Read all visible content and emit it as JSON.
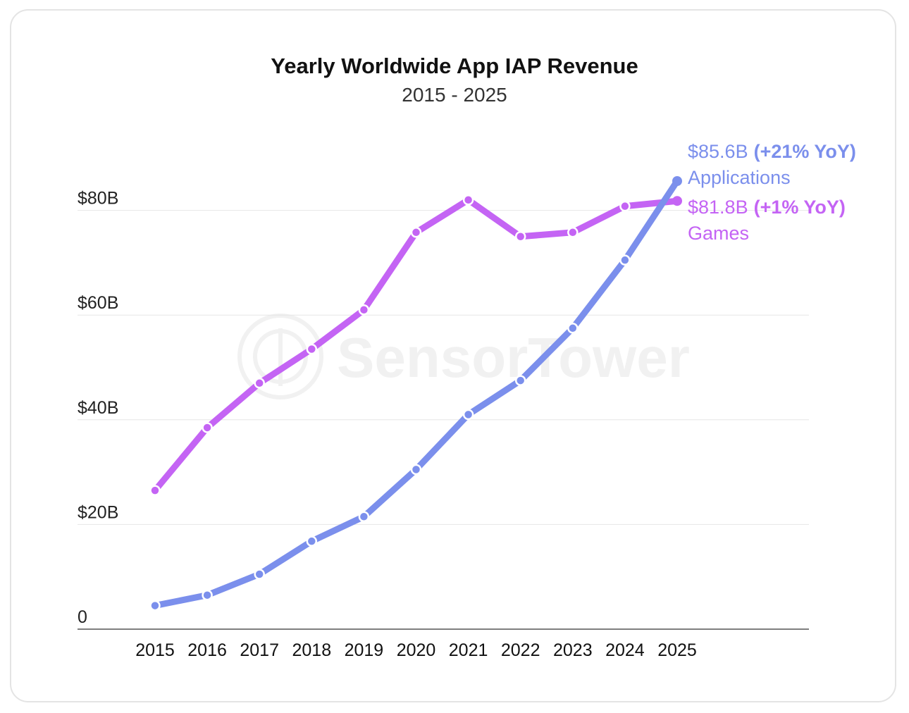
{
  "chart_data": {
    "type": "line",
    "title": "Yearly Worldwide App IAP Revenue",
    "subtitle": "2015 - 2025",
    "xlabel": "",
    "ylabel": "",
    "x": [
      "2015",
      "2016",
      "2017",
      "2018",
      "2019",
      "2020",
      "2021",
      "2022",
      "2023",
      "2024",
      "2025"
    ],
    "ylim": [
      0,
      100
    ],
    "yticks": [
      {
        "value": 0,
        "label": "0"
      },
      {
        "value": 20,
        "label": "$20B"
      },
      {
        "value": 40,
        "label": "$40B"
      },
      {
        "value": 60,
        "label": "$60B"
      },
      {
        "value": 80,
        "label": "$80B"
      }
    ],
    "grid": true,
    "series": [
      {
        "name": "Applications",
        "color": "#7b8fec",
        "values": [
          4.5,
          6.5,
          10.5,
          16.8,
          21.5,
          30.5,
          41.0,
          47.5,
          57.5,
          70.5,
          85.6
        ],
        "end_value_label": "$85.6B",
        "end_yoy_label": "(+21% YoY)"
      },
      {
        "name": "Games",
        "color": "#c464f4",
        "values": [
          26.5,
          38.5,
          47.0,
          53.5,
          61.0,
          75.8,
          82.0,
          75.0,
          75.8,
          80.8,
          81.8
        ],
        "end_value_label": "$81.8B",
        "end_yoy_label": "(+1% YoY)"
      }
    ],
    "watermark": "SensorTower"
  }
}
